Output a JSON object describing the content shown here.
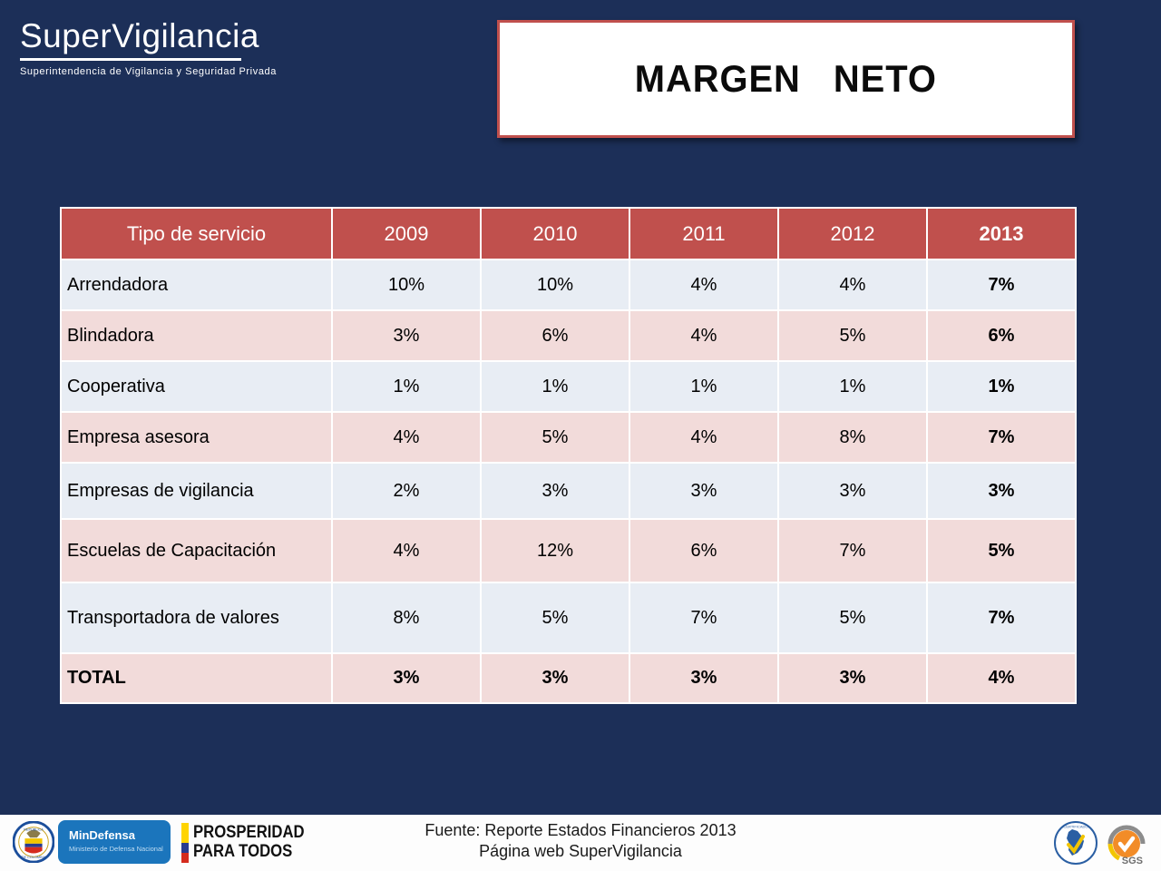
{
  "slide": {
    "background_color": "#1C2F58",
    "logo": {
      "title": "SuperVigilancia",
      "subtitle": "Superintendencia de Vigilancia y Seguridad Privada"
    },
    "title": "MARGEN   NETO",
    "table": {
      "header": [
        "Tipo de servicio",
        "2009",
        "2010",
        "2011",
        "2012",
        "2013"
      ],
      "header_color": "#C0504D",
      "row_color_light": "#E8EDF4",
      "row_color_pink": "#F2DBDA",
      "rows": [
        {
          "label": "Arrendadora",
          "values": [
            "10%",
            "10%",
            "4%",
            "4%",
            "7%"
          ],
          "bold": false
        },
        {
          "label": "Blindadora",
          "values": [
            "3%",
            "6%",
            "4%",
            "5%",
            "6%"
          ],
          "bold": false
        },
        {
          "label": "Cooperativa",
          "values": [
            "1%",
            "1%",
            "1%",
            "1%",
            "1%"
          ],
          "bold": false
        },
        {
          "label": "Empresa asesora",
          "values": [
            "4%",
            "5%",
            "4%",
            "8%",
            "7%"
          ],
          "bold": false
        },
        {
          "label": "Empresas de vigilancia",
          "values": [
            "2%",
            "3%",
            "3%",
            "3%",
            "3%"
          ],
          "bold": false
        },
        {
          "label": "Escuelas de Capacitación",
          "values": [
            "4%",
            "12%",
            "6%",
            "7%",
            "5%"
          ],
          "bold": false
        },
        {
          "label": "Transportadora de valores",
          "values": [
            "8%",
            "5%",
            "7%",
            "5%",
            "7%"
          ],
          "bold": false
        },
        {
          "label": "TOTAL",
          "values": [
            "3%",
            "3%",
            "3%",
            "3%",
            "4%"
          ],
          "bold": true
        }
      ]
    },
    "footer": {
      "source_line1": "Fuente: Reporte Estados Financieros 2013",
      "source_line2": "Página web SuperVigilancia",
      "mindefensa": {
        "title": "MinDefensa",
        "subtitle": "Ministerio de Defensa Nacional",
        "color": "#1B75BC"
      },
      "prosperidad": {
        "line1": "PROSPERIDAD",
        "line2": "PARA TODOS",
        "stripe_colors": [
          "#FFD400",
          "#2A3C8F",
          "#D52B1E"
        ]
      },
      "sgs": {
        "label": "SGS",
        "accent_color": "#F28C28"
      }
    }
  }
}
